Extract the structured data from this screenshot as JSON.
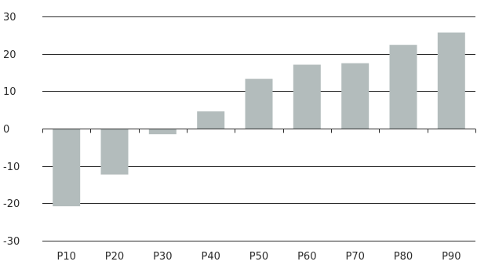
{
  "chart_data": {
    "type": "bar",
    "categories": [
      "P10",
      "P20",
      "P30",
      "P40",
      "P50",
      "P60",
      "P70",
      "P80",
      "P90"
    ],
    "values": [
      -20.8,
      -12.3,
      -1.5,
      4.6,
      13.3,
      17.1,
      17.5,
      22.4,
      25.7
    ],
    "title": "",
    "xlabel": "",
    "ylabel": "",
    "ylim": [
      -30,
      30
    ],
    "yticks": [
      30,
      20,
      10,
      0,
      -10,
      -20,
      -30
    ],
    "grid": true,
    "legend": "none",
    "colors": {
      "bar": "#b3bcbc",
      "grid": "#2b2b2b",
      "text": "#2b2b2b"
    }
  }
}
